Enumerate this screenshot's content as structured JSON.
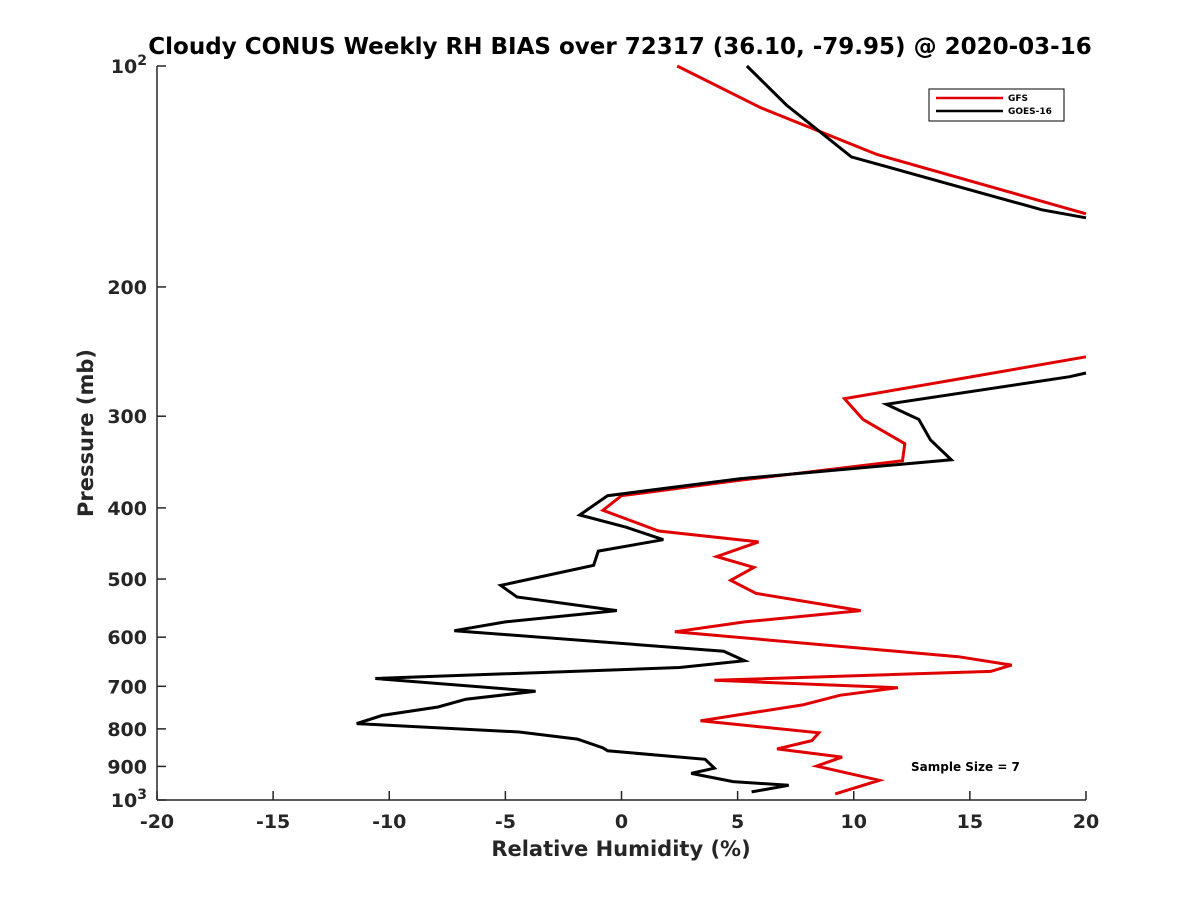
{
  "chart_data": {
    "type": "line",
    "title": "Cloudy CONUS Weekly RH BIAS over 72317 (36.10, -79.95) @ 2020-03-16",
    "xlabel": "Relative Humidity (%)",
    "ylabel": "Pressure (mb)",
    "xlim": [
      -20,
      20
    ],
    "ylim": [
      100,
      1000
    ],
    "y_scale": "log",
    "y_reversed": true,
    "grid": false,
    "legend_position": "top-right",
    "x_ticks": [
      "-20",
      "-15",
      "-10",
      "-5",
      "0",
      "5",
      "10",
      "15",
      "20"
    ],
    "y_ticks": [
      {
        "value": 100,
        "base": "10",
        "exp": "2"
      },
      {
        "value": 200,
        "label": "200"
      },
      {
        "value": 300,
        "label": "300"
      },
      {
        "value": 400,
        "label": "400"
      },
      {
        "value": 500,
        "label": "500"
      },
      {
        "value": 600,
        "label": "600"
      },
      {
        "value": 700,
        "label": "700"
      },
      {
        "value": 800,
        "label": "800"
      },
      {
        "value": 900,
        "label": "900"
      },
      {
        "value": 1000,
        "base": "10",
        "exp": "3"
      }
    ],
    "series": [
      {
        "name": "GFS",
        "color": "#e00000",
        "segments": [
          [
            [
              2.4,
              100
            ],
            [
              6.0,
              114
            ],
            [
              11.0,
              132
            ],
            [
              20.0,
              159
            ]
          ],
          [
            [
              20.0,
              249
            ],
            [
              14.8,
              266
            ],
            [
              9.6,
              284
            ],
            [
              10.4,
              303
            ],
            [
              12.2,
              327
            ],
            [
              12.1,
              345
            ],
            [
              5.0,
              367
            ],
            [
              0.0,
              385
            ],
            [
              -0.8,
              403
            ],
            [
              1.6,
              430
            ],
            [
              5.9,
              445
            ],
            [
              4.1,
              466
            ],
            [
              5.7,
              482
            ],
            [
              4.7,
              502
            ],
            [
              5.8,
              523
            ],
            [
              10.3,
              552
            ],
            [
              5.3,
              572
            ],
            [
              2.3,
              590
            ],
            [
              14.5,
              638
            ],
            [
              16.8,
              655
            ],
            [
              15.9,
              668
            ],
            [
              4.0,
              687
            ],
            [
              11.9,
              703
            ],
            [
              9.4,
              720
            ],
            [
              7.8,
              742
            ],
            [
              5.0,
              766
            ],
            [
              3.4,
              780
            ],
            [
              8.5,
              810
            ],
            [
              8.2,
              830
            ],
            [
              6.7,
              852
            ],
            [
              9.5,
              874
            ],
            [
              8.4,
              899
            ],
            [
              11.1,
              940
            ],
            [
              9.2,
              981
            ]
          ]
        ]
      },
      {
        "name": "GOES-16",
        "color": "#000000",
        "segments": [
          [
            [
              5.4,
              100
            ],
            [
              7.1,
              113
            ],
            [
              9.9,
              133
            ],
            [
              18.1,
              157
            ],
            [
              20.0,
              161
            ]
          ],
          [
            [
              20.0,
              262
            ],
            [
              19.3,
              265
            ],
            [
              11.4,
              289
            ],
            [
              12.8,
              303
            ],
            [
              13.3,
              323
            ],
            [
              14.2,
              344
            ],
            [
              5.1,
              365
            ],
            [
              -0.6,
              385
            ],
            [
              -1.8,
              409
            ],
            [
              0.2,
              425
            ],
            [
              1.8,
              442
            ],
            [
              -1.0,
              458
            ],
            [
              -1.2,
              479
            ],
            [
              -5.2,
              510
            ],
            [
              -4.5,
              529
            ],
            [
              -0.2,
              552
            ],
            [
              -5.0,
              572
            ],
            [
              -7.2,
              588
            ],
            [
              4.4,
              627
            ],
            [
              5.3,
              646
            ],
            [
              2.5,
              660
            ],
            [
              -10.6,
              683
            ],
            [
              -3.7,
              711
            ],
            [
              -6.7,
              729
            ],
            [
              -7.9,
              747
            ],
            [
              -10.3,
              767
            ],
            [
              -11.4,
              787
            ],
            [
              -4.4,
              808
            ],
            [
              -1.9,
              826
            ],
            [
              -0.8,
              849
            ],
            [
              -0.6,
              857
            ],
            [
              3.6,
              880
            ],
            [
              4.0,
              905
            ],
            [
              3.0,
              920
            ],
            [
              4.8,
              944
            ],
            [
              7.2,
              955
            ],
            [
              5.6,
              975
            ]
          ]
        ]
      }
    ],
    "annotation": "Sample Size = 7"
  }
}
